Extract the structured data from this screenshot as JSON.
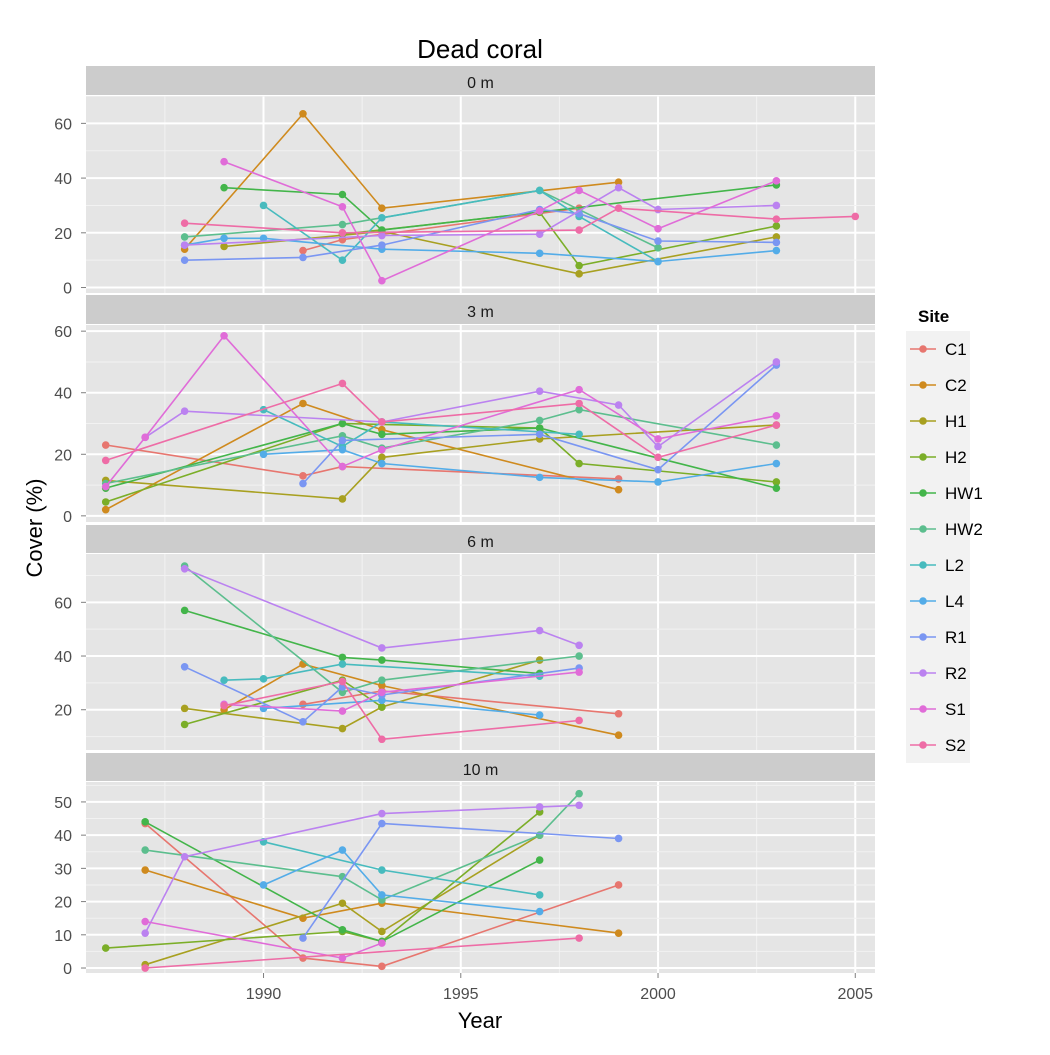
{
  "chart_data": {
    "type": "line",
    "title": "Dead coral",
    "xlabel": "Year",
    "ylabel": "Cover (%)",
    "xlim": [
      1985.5,
      2005.5
    ],
    "x_ticks": [
      1990,
      1995,
      2000,
      2005
    ],
    "grid": true,
    "legend": {
      "title": "Site",
      "placement": "right",
      "entries": [
        "C1",
        "C2",
        "H1",
        "H2",
        "HW1",
        "HW2",
        "L2",
        "L4",
        "R1",
        "R2",
        "S1",
        "S2"
      ]
    },
    "colors": {
      "C1": "#E7766F",
      "C2": "#CF8A1E",
      "H1": "#A8A020",
      "H2": "#7BAE28",
      "HW1": "#43B54A",
      "HW2": "#5CBE8E",
      "L2": "#47BBBE",
      "L4": "#53ACE8",
      "R1": "#7A96F2",
      "R2": "#BB82F0",
      "S1": "#E06CD8",
      "S2": "#EE6CA6"
    },
    "panels": [
      {
        "label": "0 m",
        "ylim": [
          -2,
          70
        ],
        "y_ticks": [
          0,
          20,
          40,
          60
        ],
        "series": [
          {
            "name": "C1",
            "x": [
              1991,
              1992,
              1998
            ],
            "y": [
              13.5,
              17.5,
              29
            ]
          },
          {
            "name": "C2",
            "x": [
              1988,
              1991,
              1993,
              1999
            ],
            "y": [
              14,
              63.5,
              29,
              38.5
            ]
          },
          {
            "name": "H1",
            "x": [
              1989,
              1993,
              1998,
              2003
            ],
            "y": [
              15,
              20.5,
              5,
              18.5
            ]
          },
          {
            "name": "H2",
            "x": [
              1992,
              1997,
              1998,
              2003
            ],
            "y": [
              19.5,
              27.5,
              8,
              22.5
            ]
          },
          {
            "name": "HW1",
            "x": [
              1989,
              1992,
              1993,
              2003
            ],
            "y": [
              36.5,
              34,
              21,
              37.5
            ]
          },
          {
            "name": "HW2",
            "x": [
              1988,
              1992,
              1997,
              2000
            ],
            "y": [
              18.5,
              23,
              35.5,
              14.5
            ]
          },
          {
            "name": "L2",
            "x": [
              1990,
              1992,
              1993,
              1997,
              1998,
              2000
            ],
            "y": [
              30,
              10,
              25.5,
              35.5,
              26,
              9.5
            ]
          },
          {
            "name": "L4",
            "x": [
              1988,
              1989,
              1990,
              1993,
              1997,
              2000,
              2003
            ],
            "y": [
              15.5,
              18,
              18,
              14,
              12.5,
              9.5,
              13.5
            ]
          },
          {
            "name": "R1",
            "x": [
              1988,
              1991,
              1993,
              1997,
              1998,
              2000,
              2003
            ],
            "y": [
              10,
              11,
              15.5,
              28.5,
              27,
              17,
              16.5
            ]
          },
          {
            "name": "R2",
            "x": [
              1988,
              1993,
              1997,
              1999,
              2000,
              2003
            ],
            "y": [
              15.5,
              19,
              19.5,
              36.5,
              28.5,
              30
            ]
          },
          {
            "name": "S1",
            "x": [
              1989,
              1992,
              1993,
              1997,
              1998,
              2000,
              2003
            ],
            "y": [
              46,
              29.5,
              2.5,
              28,
              35.5,
              21.5,
              39
            ]
          },
          {
            "name": "S2",
            "x": [
              1988,
              1992,
              1998,
              1999,
              2003,
              2005
            ],
            "y": [
              23.5,
              20,
              21,
              29,
              25,
              26
            ]
          }
        ]
      },
      {
        "label": "3 m",
        "ylim": [
          -2,
          62
        ],
        "y_ticks": [
          0,
          20,
          40,
          60
        ],
        "series": [
          {
            "name": "C1",
            "x": [
              1986,
              1991,
              1992,
              1999
            ],
            "y": [
              23,
              13,
              16,
              12
            ]
          },
          {
            "name": "C2",
            "x": [
              1986,
              1991,
              1993,
              1999
            ],
            "y": [
              2,
              36.5,
              28,
              8.5
            ]
          },
          {
            "name": "H1",
            "x": [
              1986,
              1992,
              1993,
              1997,
              2003
            ],
            "y": [
              11.5,
              5.5,
              19,
              25,
              29.5
            ]
          },
          {
            "name": "H2",
            "x": [
              1986,
              1992,
              1997,
              1998,
              2003
            ],
            "y": [
              4.5,
              30,
              28.5,
              17,
              11
            ]
          },
          {
            "name": "HW1",
            "x": [
              1986,
              1992,
              1993,
              1997,
              2003
            ],
            "y": [
              9,
              30,
              26.5,
              28.5,
              9
            ]
          },
          {
            "name": "HW2",
            "x": [
              1986,
              1992,
              1993,
              1997,
              1998,
              2003
            ],
            "y": [
              10.5,
              26,
              22,
              31,
              34.5,
              23
            ]
          },
          {
            "name": "L2",
            "x": [
              1990,
              1992,
              1993,
              1998
            ],
            "y": [
              34.5,
              22.5,
              30.5,
              26.5
            ]
          },
          {
            "name": "L4",
            "x": [
              1990,
              1992,
              1993,
              1997,
              2000,
              2003
            ],
            "y": [
              20,
              21.5,
              17,
              12.5,
              11,
              17
            ]
          },
          {
            "name": "R1",
            "x": [
              1991,
              1992,
              1997,
              2000,
              2003
            ],
            "y": [
              10.5,
              24.5,
              26.5,
              15,
              49
            ]
          },
          {
            "name": "R2",
            "x": [
              1987,
              1988,
              1993,
              1997,
              1999,
              2000,
              2003
            ],
            "y": [
              25.5,
              34,
              30.5,
              40.5,
              36,
              22.5,
              50
            ]
          },
          {
            "name": "S1",
            "x": [
              1986,
              1987,
              1989,
              1992,
              1993,
              1998,
              2000,
              2003
            ],
            "y": [
              9.5,
              25.5,
              58.5,
              16,
              21.5,
              41,
              25,
              32.5
            ]
          },
          {
            "name": "S2",
            "x": [
              1986,
              1992,
              1993,
              1998,
              2000,
              2003
            ],
            "y": [
              18,
              43,
              30.5,
              36.5,
              19,
              29.5
            ]
          }
        ]
      },
      {
        "label": "6 m",
        "ylim": [
          5,
          78
        ],
        "y_ticks": [
          20,
          40,
          60
        ],
        "series": [
          {
            "name": "C1",
            "x": [
              1991,
              1993,
              1999
            ],
            "y": [
              22,
              27,
              18.5
            ]
          },
          {
            "name": "C2",
            "x": [
              1989,
              1991,
              1993,
              1999
            ],
            "y": [
              20,
              37,
              29,
              10.5
            ]
          },
          {
            "name": "H1",
            "x": [
              1988,
              1992,
              1993,
              1997
            ],
            "y": [
              20.5,
              13,
              21,
              38.5
            ]
          },
          {
            "name": "H2",
            "x": [
              1988,
              1992,
              1993
            ],
            "y": [
              14.5,
              31,
              21
            ]
          },
          {
            "name": "HW1",
            "x": [
              1988,
              1992,
              1993,
              1997
            ],
            "y": [
              57,
              39.5,
              38.5,
              33.5
            ]
          },
          {
            "name": "HW2",
            "x": [
              1988,
              1992,
              1993,
              1998
            ],
            "y": [
              73.5,
              26.5,
              31,
              40
            ]
          },
          {
            "name": "L2",
            "x": [
              1989,
              1990,
              1992,
              1997
            ],
            "y": [
              31,
              31.5,
              37,
              32.5
            ]
          },
          {
            "name": "L4",
            "x": [
              1990,
              1993,
              1997
            ],
            "y": [
              20.5,
              23.5,
              18
            ]
          },
          {
            "name": "R1",
            "x": [
              1988,
              1991,
              1992,
              1993,
              1998
            ],
            "y": [
              36,
              15.5,
              28.5,
              25.5,
              35.5
            ]
          },
          {
            "name": "R2",
            "x": [
              1988,
              1993,
              1997,
              1998
            ],
            "y": [
              72.5,
              43,
              49.5,
              44
            ]
          },
          {
            "name": "S1",
            "x": [
              1989,
              1992,
              1993,
              1998
            ],
            "y": [
              22,
              19.5,
              26.5,
              34
            ]
          },
          {
            "name": "S2",
            "x": [
              1989,
              1992,
              1993,
              1998
            ],
            "y": [
              21.5,
              30.5,
              9,
              16
            ]
          }
        ]
      },
      {
        "label": "10 m",
        "ylim": [
          -1.5,
          56
        ],
        "y_ticks": [
          0,
          10,
          20,
          30,
          40,
          50
        ],
        "series": [
          {
            "name": "C1",
            "x": [
              1987,
              1991,
              1993,
              1999
            ],
            "y": [
              43.5,
              3,
              0.5,
              25
            ]
          },
          {
            "name": "C2",
            "x": [
              1987,
              1991,
              1993,
              1999
            ],
            "y": [
              29.5,
              15,
              19.5,
              10.5
            ]
          },
          {
            "name": "H1",
            "x": [
              1987,
              1992,
              1993,
              1997
            ],
            "y": [
              1,
              19.5,
              11,
              40
            ]
          },
          {
            "name": "H2",
            "x": [
              1986,
              1992,
              1993,
              1997
            ],
            "y": [
              6,
              11,
              8,
              47
            ]
          },
          {
            "name": "HW1",
            "x": [
              1987,
              1992,
              1993,
              1997
            ],
            "y": [
              44,
              11.5,
              8,
              32.5
            ]
          },
          {
            "name": "HW2",
            "x": [
              1987,
              1992,
              1993,
              1997,
              1998
            ],
            "y": [
              35.5,
              27.5,
              20.5,
              40,
              52.5
            ]
          },
          {
            "name": "L2",
            "x": [
              1990,
              1993,
              1997
            ],
            "y": [
              38,
              29.5,
              22
            ]
          },
          {
            "name": "L4",
            "x": [
              1990,
              1992,
              1993,
              1997
            ],
            "y": [
              25,
              35.5,
              22,
              17
            ]
          },
          {
            "name": "R1",
            "x": [
              1991,
              1993,
              1999
            ],
            "y": [
              9,
              43.5,
              39
            ]
          },
          {
            "name": "R2",
            "x": [
              1987,
              1988,
              1993,
              1997,
              1998
            ],
            "y": [
              10.5,
              33.5,
              46.5,
              48.5,
              49
            ]
          },
          {
            "name": "S1",
            "x": [
              1987,
              1992,
              1993
            ],
            "y": [
              14,
              3,
              7.5
            ]
          },
          {
            "name": "S2",
            "x": [
              1987,
              1998
            ],
            "y": [
              0,
              9
            ]
          }
        ]
      }
    ]
  }
}
